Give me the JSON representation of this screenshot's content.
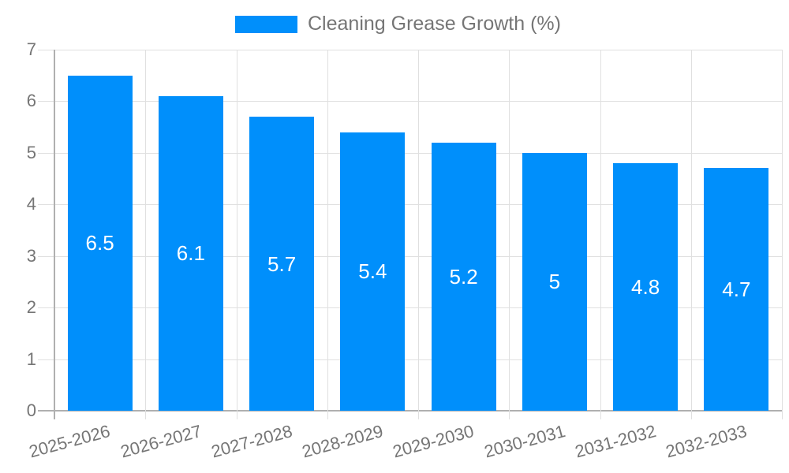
{
  "legend": {
    "label": "Cleaning Grease Growth (%)"
  },
  "colors": {
    "bar": "#008FFB",
    "bar_label": "#FFFFFF",
    "axis_text": "#757575",
    "grid": "#E0E0E0",
    "axis_line": "#B0B0B0",
    "background": "#FFFFFF"
  },
  "chart_data": {
    "type": "bar",
    "title": "Cleaning Grease Growth (%)",
    "categories": [
      "2025-2026",
      "2026-2027",
      "2027-2028",
      "2028-2029",
      "2029-2030",
      "2030-2031",
      "2031-2032",
      "2032-2033"
    ],
    "values": [
      6.5,
      6.1,
      5.7,
      5.4,
      5.2,
      5,
      4.8,
      4.7
    ],
    "bar_labels": [
      "6.5",
      "6.1",
      "5.7",
      "5.4",
      "5.2",
      "5",
      "4.8",
      "4.7"
    ],
    "xlabel": "",
    "ylabel": "",
    "ylim": [
      0,
      7
    ],
    "yticks": [
      0,
      1,
      2,
      3,
      4,
      5,
      6,
      7
    ],
    "grid": true,
    "legend_position": "top-center"
  }
}
